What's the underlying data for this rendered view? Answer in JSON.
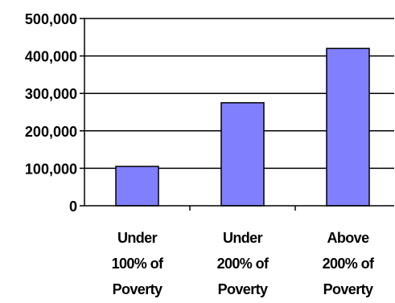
{
  "chart_data": {
    "type": "bar",
    "categories": [
      [
        "Under",
        "100% of",
        "Poverty"
      ],
      [
        "Under",
        "200% of",
        "Poverty"
      ],
      [
        "Above",
        "200% of",
        "Poverty"
      ]
    ],
    "values": [
      105000,
      275000,
      420000
    ],
    "ylim": [
      0,
      500000
    ],
    "yticks": [
      "0",
      "100,000",
      "200,000",
      "300,000",
      "400,000",
      "500,000"
    ],
    "grid": true,
    "legend": "none",
    "colors": {
      "bar_fill": "#8080ff",
      "bar_stroke": "#000000",
      "grid": "#000000",
      "axis": "#000000"
    }
  }
}
